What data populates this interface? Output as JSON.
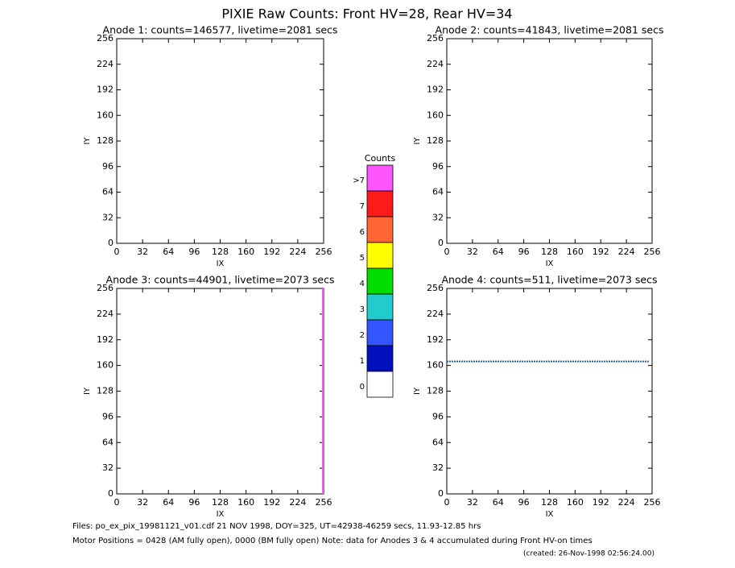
{
  "title": "PIXIE Raw Counts:  Front HV=28, Rear HV=34",
  "panels": [
    {
      "title": "Anode 1: counts=146577, livetime=2081 secs",
      "xlabel": "IX",
      "ylabel": "IY",
      "xlim": [
        0,
        256
      ],
      "ylim": [
        0,
        256
      ],
      "xticks": [
        0,
        32,
        64,
        96,
        128,
        160,
        192,
        224,
        256
      ],
      "yticks": [
        0,
        32,
        64,
        96,
        128,
        160,
        192,
        224,
        256
      ],
      "markers": []
    },
    {
      "title": "Anode 2: counts=41843, livetime=2081 secs",
      "xlabel": "IX",
      "ylabel": "IY",
      "xlim": [
        0,
        256
      ],
      "ylim": [
        0,
        256
      ],
      "xticks": [
        0,
        32,
        64,
        96,
        128,
        160,
        192,
        224,
        256
      ],
      "yticks": [
        0,
        32,
        64,
        96,
        128,
        160,
        192,
        224,
        256
      ],
      "markers": []
    },
    {
      "title": "Anode 3: counts=44901, livetime=2073 secs",
      "xlabel": "IX",
      "ylabel": "IY",
      "xlim": [
        0,
        256
      ],
      "ylim": [
        0,
        256
      ],
      "xticks": [
        0,
        32,
        64,
        96,
        128,
        160,
        192,
        224,
        256
      ],
      "yticks": [
        0,
        32,
        64,
        96,
        128,
        160,
        192,
        224,
        256
      ],
      "markers": [
        {
          "axis": "x",
          "value": 255,
          "color": "#ff55ff"
        }
      ]
    },
    {
      "title": "Anode 4: counts=511, livetime=2073 secs",
      "xlabel": "IX",
      "ylabel": "IY",
      "xlim": [
        0,
        256
      ],
      "ylim": [
        0,
        256
      ],
      "xticks": [
        0,
        32,
        64,
        96,
        128,
        160,
        192,
        224,
        256
      ],
      "yticks": [
        0,
        32,
        64,
        96,
        128,
        160,
        192,
        224,
        256
      ],
      "markers": [
        {
          "axis": "y",
          "value": 165,
          "color": "#2a5fa0"
        }
      ]
    }
  ],
  "colorbar": {
    "title": "Counts",
    "levels": [
      {
        "label": ">7",
        "color": "#ff55ff"
      },
      {
        "label": "7",
        "color": "#ff1a1a"
      },
      {
        "label": "6",
        "color": "#ff6633"
      },
      {
        "label": "5",
        "color": "#ffff00"
      },
      {
        "label": "4",
        "color": "#00dd00"
      },
      {
        "label": "3",
        "color": "#22cccc"
      },
      {
        "label": "2",
        "color": "#3355ff"
      },
      {
        "label": "1",
        "color": "#0011bb"
      },
      {
        "label": "0",
        "color": "#ffffff"
      }
    ]
  },
  "footer": [
    "Files: po_ex_pix_19981121_v01.cdf   21 NOV 1998, DOY=325, UT=42938-46259 secs, 11.93-12.85 hrs",
    "Motor Positions = 0428 (AM fully open), 0000 (BM fully open)    Note: data for Anodes 3 & 4 accumulated during Front HV-on times",
    "(created: 26-Nov-1998 02:56:24.00)"
  ]
}
